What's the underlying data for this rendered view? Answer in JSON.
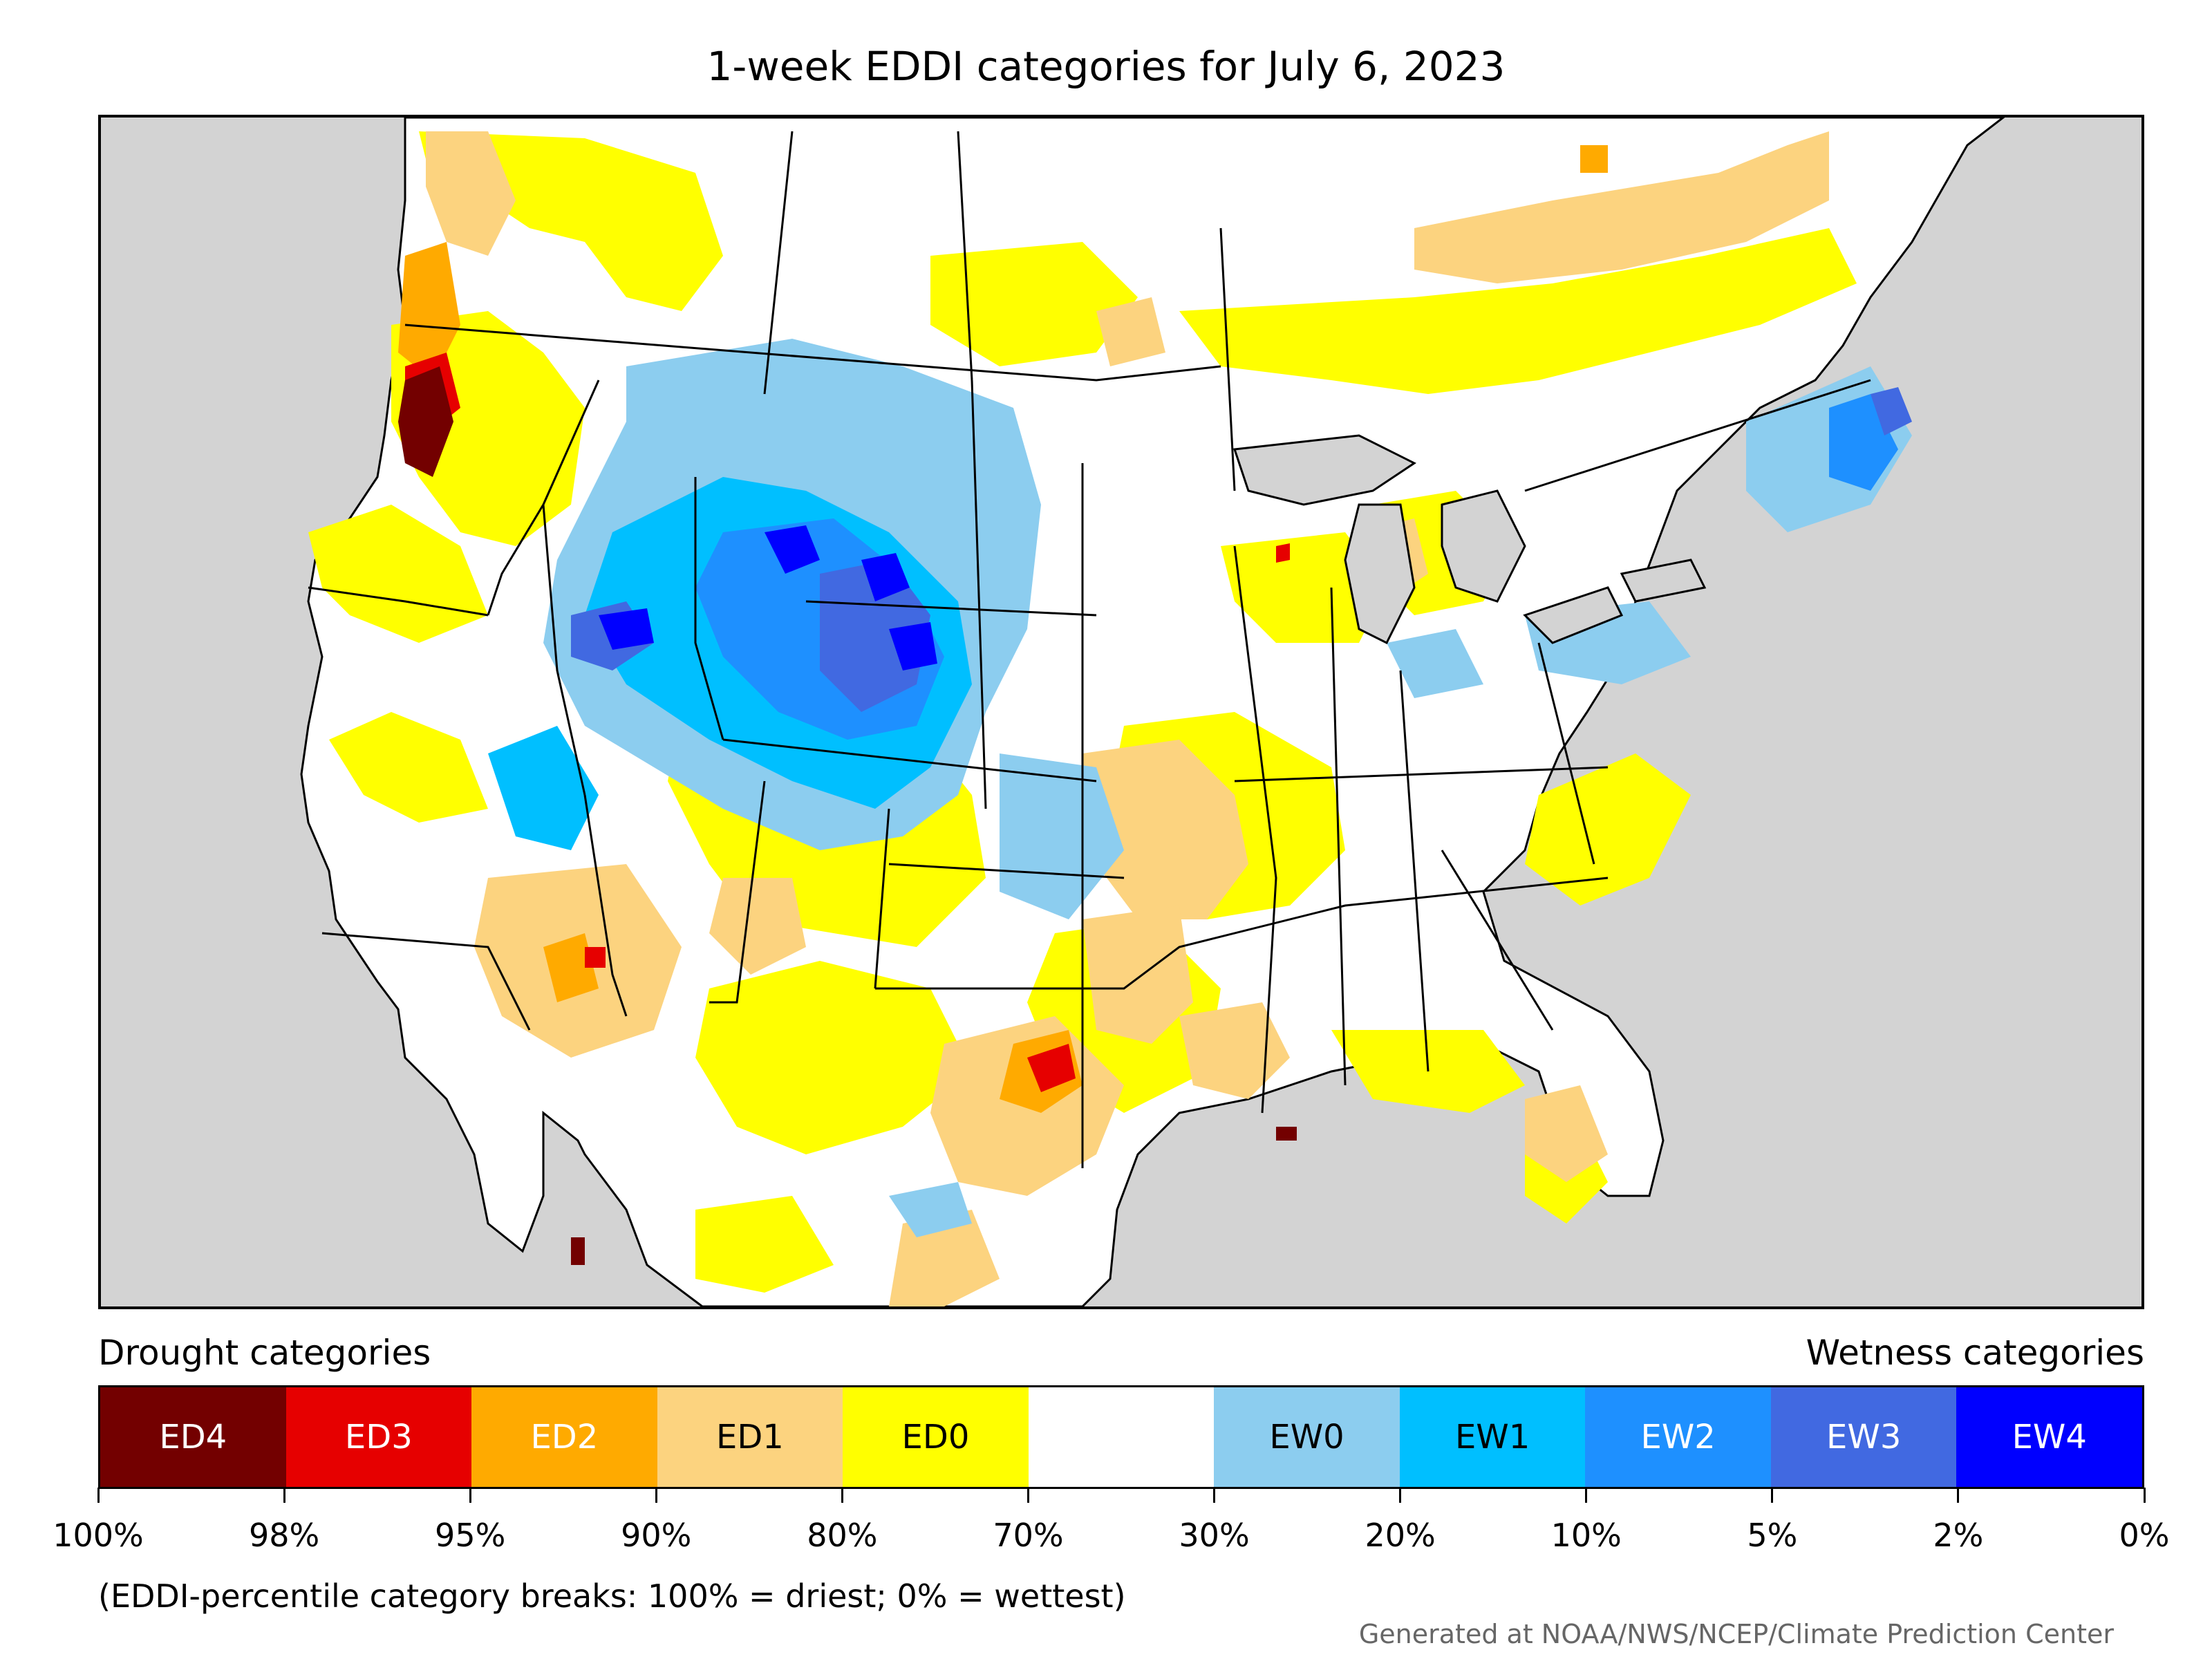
{
  "title": "1-week EDDI categories for July 6, 2023",
  "colors": {
    "ocean_land_outside": "#d3d3d3",
    "neutral": "#ffffff",
    "state_borders": "#000000"
  },
  "map": {
    "regions": [
      {
        "label": "Pacific Northwest coast",
        "category": "ED4"
      },
      {
        "label": "Great Basin / Utah",
        "category": "EW3"
      },
      {
        "label": "Wyoming / Colorado",
        "category": "EW4"
      },
      {
        "label": "Nebraska",
        "category": "EW4"
      },
      {
        "label": "Northern Rockies",
        "category": "EW0"
      },
      {
        "label": "Desert Southwest",
        "category": "ED1"
      },
      {
        "label": "Central Texas",
        "category": "ED3"
      },
      {
        "label": "Missouri / Arkansas",
        "category": "ED1"
      },
      {
        "label": "Louisiana coast",
        "category": "ED1"
      },
      {
        "label": "Florida peninsula",
        "category": "ED1"
      },
      {
        "label": "Northern Maine",
        "category": "EW3"
      },
      {
        "label": "Southern Ontario / Quebec",
        "category": "ED1"
      }
    ]
  },
  "legend": {
    "drought_title": "Drought categories",
    "wetness_title": "Wetness categories",
    "categories": [
      {
        "label": "ED4",
        "color": "#730000",
        "text_color": "#ffffff"
      },
      {
        "label": "ED3",
        "color": "#e60000",
        "text_color": "#ffffff"
      },
      {
        "label": "ED2",
        "color": "#ffaa00",
        "text_color": "#ffffff"
      },
      {
        "label": "ED1",
        "color": "#fcd37f",
        "text_color": "#000000"
      },
      {
        "label": "ED0",
        "color": "#ffff00",
        "text_color": "#000000"
      },
      {
        "label": "",
        "color": "#ffffff",
        "text_color": "#000000"
      },
      {
        "label": "EW0",
        "color": "#8ccdef",
        "text_color": "#000000"
      },
      {
        "label": "EW1",
        "color": "#00bfff",
        "text_color": "#000000"
      },
      {
        "label": "EW2",
        "color": "#1e90ff",
        "text_color": "#ffffff"
      },
      {
        "label": "EW3",
        "color": "#4169e1",
        "text_color": "#ffffff"
      },
      {
        "label": "EW4",
        "color": "#0000ff",
        "text_color": "#ffffff"
      }
    ],
    "ticks": [
      "100%",
      "98%",
      "95%",
      "90%",
      "80%",
      "70%",
      "30%",
      "20%",
      "10%",
      "5%",
      "2%",
      "0%"
    ]
  },
  "footnote": "(EDDI-percentile category breaks: 100% = driest; 0% = wettest)",
  "credit": "Generated at NOAA/NWS/NCEP/Climate Prediction Center"
}
